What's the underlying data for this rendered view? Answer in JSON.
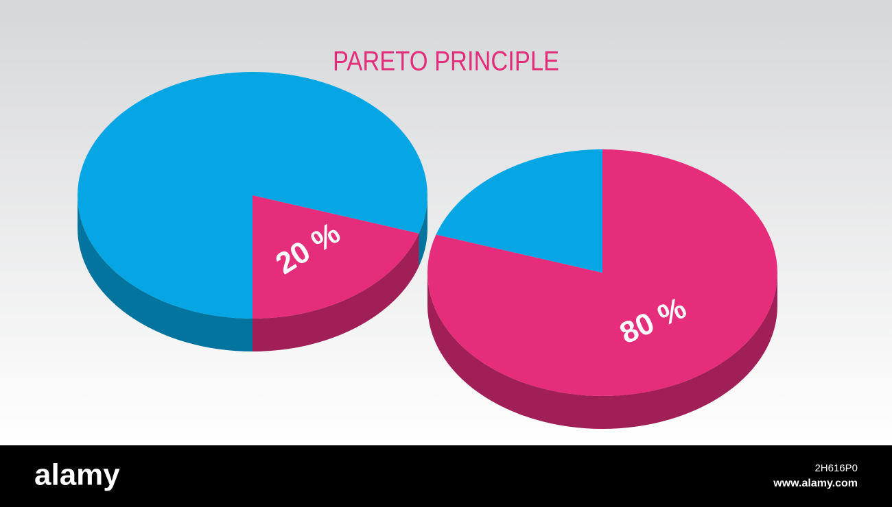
{
  "title": "PARETO PRINCIPLE",
  "chart_data": [
    {
      "type": "pie",
      "values": [
        20,
        80
      ],
      "colors": [
        "#e52d7b",
        "#05a6e3"
      ],
      "value_labels": [
        "20 %",
        null
      ]
    },
    {
      "type": "pie",
      "values": [
        80,
        20
      ],
      "colors": [
        "#e52d7b",
        "#05a6e3"
      ],
      "value_labels": [
        "80 %",
        null
      ]
    }
  ],
  "footer": {
    "logo": "alamy",
    "image_id": "2H616P0",
    "url": "www.alamy.com"
  }
}
